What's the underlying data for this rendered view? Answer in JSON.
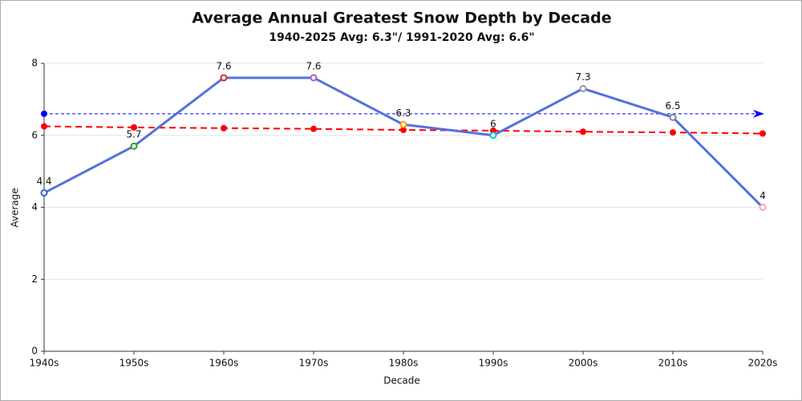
{
  "chart_data": {
    "type": "line",
    "title": "Average Annual Greatest Snow Depth by Decade",
    "subtitle": "1940-2025 Avg: 6.3\"/ 1991-2020 Avg: 6.6\"",
    "x_label": "Decade",
    "y_label": "Average",
    "categories": [
      "1940s",
      "1950s",
      "1960s",
      "1970s",
      "1980s",
      "1990s",
      "2000s",
      "2010s",
      "2020s"
    ],
    "series": [
      {
        "color": "#5470e0",
        "values": [
          4.4,
          5.7,
          7.6,
          7.6,
          6.3,
          6,
          7.3,
          6.5,
          4
        ],
        "point_colors": [
          "#3a5bd0",
          "#2ca02c",
          "#d62728",
          "#9467bd",
          "#ff9900",
          "#17becf",
          "#999999",
          "#7f8c8d",
          "#f4a6b8"
        ]
      },
      {
        "color": "#ff0000",
        "dashed": true,
        "values": [
          6.25,
          6.22,
          6.2,
          6.18,
          6.15,
          6.13,
          6.1,
          6.08,
          6.05
        ]
      }
    ],
    "reference_line": {
      "value": 6.6,
      "color": "#0000ff"
    },
    "ylim": [
      0,
      8
    ],
    "yticks": [
      0,
      2,
      4,
      6,
      8
    ],
    "grid": true
  }
}
